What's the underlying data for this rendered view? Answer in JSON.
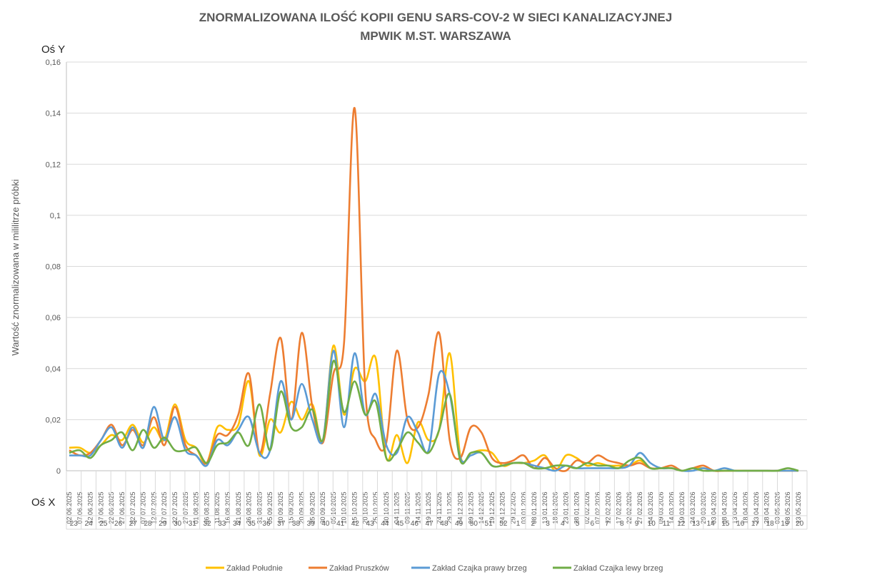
{
  "chart_data": {
    "type": "line",
    "title": [
      "ZNORMALIZOWANA ILOŚĆ KOPII GENU SARS-COV-2 W SIECI KANALIZACYJNEJ",
      "MPWIK M.ST. WARSZAWA"
    ],
    "y_axis_name": "Oś Y",
    "x_axis_name": "Oś X",
    "y_label": "Wartość znormalizowana  w mililitrze próbki",
    "categories": [
      "02.06.2025",
      "07.06.2025",
      "12.06.2025",
      "17.06.2025",
      "22.06.2025",
      "27.06.2025",
      "02.07.2025",
      "07.07.2025",
      "12.07.2025",
      "17.07.2025",
      "22.07.2025",
      "27.07.2025",
      "01.08.2025",
      "06.08.2025",
      "11.08.2025",
      "16.08.2025",
      "21.08.2025",
      "26.08.2025",
      "31.08.2025",
      "05.09.2025",
      "10.09.2025",
      "15.09.2025",
      "20.09.2025",
      "25.09.2025",
      "30.09.2025",
      "05.10.2025",
      "10.10.2025",
      "15.10.2025",
      "20.10.2025",
      "25.10.2025",
      "30.10.2025",
      "04.11.2025",
      "09.11.2025",
      "14.11.2025",
      "19.11.2025",
      "24.11.2025",
      "29.11.2025",
      "04.12.2025",
      "09.12.2025",
      "14.12.2025",
      "19.12.2025",
      "24.12.2025",
      "29.12.2025",
      "03.01.2026",
      "08.01.2026",
      "13.01.2026",
      "18.01.2026",
      "23.01.2026",
      "28.01.2026",
      "02.02.2026",
      "07.02.2026",
      "12.02.2026",
      "17.02.2026",
      "22.02.2026",
      "27.02.2026",
      "04.03.2026",
      "09.03.2026",
      "14.03.2026",
      "19.03.2026",
      "24.03.2026",
      "29.03.2026",
      "03.04.2026",
      "08.04.2026",
      "13.04.2026",
      "18.04.2026",
      "23.04.2026",
      "28.04.2026",
      "03.05.2026",
      "08.05.2026",
      "13.05.2026"
    ],
    "weeks": [
      "23",
      "24",
      "25",
      "26",
      "27",
      "28",
      "29",
      "30",
      "31",
      "32",
      "33",
      "34",
      "35",
      "36",
      "37",
      "38",
      "39",
      "40",
      "41",
      "42",
      "43",
      "44",
      "45",
      "46",
      "47",
      "48",
      "49",
      "50",
      "51",
      "52",
      "1",
      "2",
      "3",
      "4",
      "5",
      "6",
      "7",
      "8",
      "9",
      "10",
      "11",
      "12",
      "13",
      "14",
      "15",
      "16",
      "17",
      "18",
      "19",
      "20"
    ],
    "ylim": [
      0,
      0.16
    ],
    "yticks": [
      0,
      {
        "value": 0.02,
        "label": "0,02"
      },
      {
        "value": 0.04,
        "label": "0,04"
      },
      {
        "value": 0.06,
        "label": "0,06"
      },
      {
        "value": 0.08,
        "label": "0,08"
      },
      {
        "value": 0.1,
        "label": "0,1"
      },
      {
        "value": 0.12,
        "label": "0,12"
      },
      {
        "value": 0.14,
        "label": "0,14"
      },
      {
        "value": 0.16,
        "label": "0,16"
      }
    ],
    "grid": true,
    "legend": "bottom",
    "series": [
      {
        "name": "Zakład Południe",
        "color": "#ffc000",
        "values": [
          0.009,
          0.009,
          0.007,
          0.01,
          0.014,
          0.012,
          0.018,
          0.011,
          0.017,
          0.012,
          0.026,
          0.012,
          0.009,
          0.003,
          0.017,
          0.016,
          0.018,
          0.035,
          0.006,
          0.02,
          0.015,
          0.027,
          0.02,
          0.026,
          0.012,
          0.049,
          0.022,
          0.04,
          0.035,
          0.044,
          0.005,
          0.014,
          0.003,
          0.019,
          0.012,
          0.016,
          0.046,
          0.006,
          0.007,
          0.008,
          0.007,
          0.002,
          0.003,
          0.003,
          0.004,
          0.006,
          0,
          0.006,
          0.005,
          0.002,
          0.003,
          0.002,
          0.002,
          0.002,
          0.004,
          0.001,
          0.001,
          0.001,
          0,
          0.001,
          0.001,
          0,
          0,
          0,
          0,
          0,
          0,
          0,
          0,
          0
        ]
      },
      {
        "name": "Zakład Pruszków",
        "color": "#ed7d31",
        "values": [
          0.008,
          0.006,
          0.007,
          0.012,
          0.018,
          0.01,
          0.016,
          0.01,
          0.021,
          0.01,
          0.025,
          0.01,
          0.006,
          0.003,
          0.014,
          0.014,
          0.022,
          0.038,
          0.007,
          0.03,
          0.052,
          0.02,
          0.054,
          0.025,
          0.011,
          0.038,
          0.05,
          0.142,
          0.032,
          0.012,
          0.011,
          0.047,
          0.02,
          0.017,
          0.03,
          0.054,
          0.012,
          0.005,
          0.017,
          0.015,
          0.005,
          0.003,
          0.004,
          0.006,
          0.001,
          0.005,
          0.001,
          0,
          0.004,
          0.003,
          0.006,
          0.004,
          0.003,
          0.002,
          0.003,
          0.001,
          0.001,
          0.002,
          0,
          0.001,
          0.002,
          0,
          0,
          0,
          0,
          0,
          0,
          0,
          0,
          0
        ]
      },
      {
        "name": "Zakład Czajka prawy brzeg",
        "color": "#5b9bd5",
        "values": [
          0.006,
          0.006,
          0.006,
          0.012,
          0.017,
          0.009,
          0.017,
          0.009,
          0.025,
          0.012,
          0.021,
          0.008,
          0.006,
          0.002,
          0.012,
          0.01,
          0.016,
          0.021,
          0.007,
          0.008,
          0.035,
          0.02,
          0.034,
          0.02,
          0.012,
          0.047,
          0.017,
          0.046,
          0.022,
          0.03,
          0.01,
          0.007,
          0.021,
          0.015,
          0.008,
          0.038,
          0.03,
          0.005,
          0.006,
          0.007,
          0.002,
          0.002,
          0.003,
          0.003,
          0.002,
          0.001,
          0,
          0.002,
          0.001,
          0.001,
          0.001,
          0.001,
          0.001,
          0.002,
          0.007,
          0.003,
          0.001,
          0.001,
          0,
          0,
          0.001,
          0,
          0.001,
          0,
          0,
          0,
          0,
          0,
          0,
          0
        ]
      },
      {
        "name": "Zakład Czajka lewy brzeg",
        "color": "#70ad47",
        "values": [
          0.007,
          0.008,
          0.005,
          0.01,
          0.012,
          0.015,
          0.008,
          0.016,
          0.009,
          0.013,
          0.008,
          0.008,
          0.009,
          0.003,
          0.01,
          0.011,
          0.015,
          0.01,
          0.026,
          0.008,
          0.031,
          0.017,
          0.017,
          0.024,
          0.012,
          0.043,
          0.023,
          0.035,
          0.022,
          0.027,
          0.005,
          0.008,
          0.015,
          0.011,
          0.007,
          0.016,
          0.03,
          0.004,
          0.007,
          0.007,
          0.002,
          0.002,
          0.003,
          0.003,
          0.001,
          0.001,
          0.002,
          0.002,
          0.001,
          0.003,
          0.002,
          0.002,
          0.001,
          0.004,
          0.005,
          0.001,
          0.001,
          0.001,
          0,
          0.001,
          0,
          0,
          0,
          0,
          0,
          0,
          0,
          0,
          0.001,
          0
        ]
      }
    ]
  }
}
